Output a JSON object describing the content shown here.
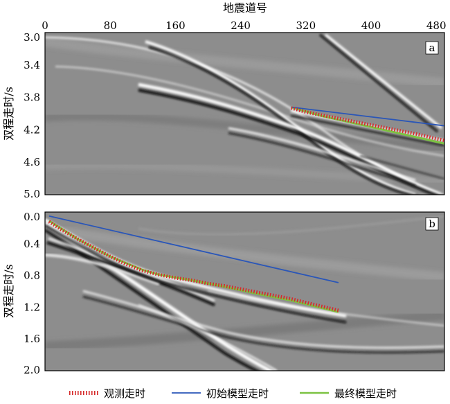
{
  "figure": {
    "x_axis_title": "地震道号",
    "y_axis_title": "双程走时/s"
  },
  "legend": {
    "items": [
      {
        "label": "观测走时",
        "color": "#d62b2b",
        "style": "dotted"
      },
      {
        "label": "初始模型走时",
        "color": "#2a56b8",
        "style": "solid"
      },
      {
        "label": "最终模型走时",
        "color": "#7cc242",
        "style": "solid"
      }
    ]
  },
  "colors": {
    "observed": "#d62b2b",
    "initial": "#2a56b8",
    "final": "#7cc242",
    "background": "#8c8c8c"
  },
  "chart_data": [
    {
      "type": "line",
      "panel_label": "a",
      "xlabel": "地震道号",
      "ylabel": "双程走时/s",
      "xlim": [
        0,
        490
      ],
      "ylim": [
        3.0,
        5.0
      ],
      "y_inverted": true,
      "xticks": [
        "0",
        "80",
        "160",
        "240",
        "320",
        "400",
        "480"
      ],
      "yticks": [
        "3.0",
        "3.4",
        "3.8",
        "4.2",
        "4.6",
        "5.0"
      ],
      "series": [
        {
          "name": "观测走时",
          "x": [
            302,
            320,
            340,
            360,
            380,
            400,
            420,
            440,
            460,
            480,
            490
          ],
          "y": [
            3.93,
            3.98,
            4.02,
            4.06,
            4.1,
            4.14,
            4.18,
            4.22,
            4.26,
            4.31,
            4.33
          ]
        },
        {
          "name": "初始模型走时",
          "x": [
            302,
            490
          ],
          "y": [
            3.92,
            4.15
          ]
        },
        {
          "name": "最终模型走时",
          "x": [
            302,
            340,
            380,
            420,
            460,
            490
          ],
          "y": [
            3.92,
            4.03,
            4.12,
            4.21,
            4.3,
            4.37
          ]
        }
      ]
    },
    {
      "type": "line",
      "panel_label": "b",
      "xlabel": "地震道号",
      "ylabel": "双程走时/s",
      "xlim": [
        0,
        490
      ],
      "ylim": [
        0.0,
        2.0
      ],
      "y_inverted": true,
      "xticks": [
        "0",
        "80",
        "160",
        "240",
        "320",
        "400",
        "480"
      ],
      "yticks": [
        "0.0",
        "0.4",
        "0.8",
        "1.2",
        "1.6",
        "2.0"
      ],
      "series": [
        {
          "name": "观测走时",
          "x": [
            5,
            20,
            40,
            60,
            80,
            100,
            120,
            140,
            160,
            180,
            200,
            220,
            240,
            260,
            280,
            300,
            320,
            340,
            360
          ],
          "y": [
            0.12,
            0.22,
            0.34,
            0.45,
            0.56,
            0.66,
            0.74,
            0.79,
            0.83,
            0.86,
            0.9,
            0.93,
            0.97,
            1.01,
            1.05,
            1.09,
            1.14,
            1.19,
            1.24
          ]
        },
        {
          "name": "初始模型走时",
          "x": [
            5,
            360
          ],
          "y": [
            0.05,
            0.89
          ]
        },
        {
          "name": "最终模型走时",
          "x": [
            5,
            40,
            80,
            120,
            140,
            180,
            220,
            260,
            300,
            340,
            360
          ],
          "y": [
            0.11,
            0.34,
            0.56,
            0.73,
            0.79,
            0.86,
            0.94,
            1.03,
            1.11,
            1.21,
            1.26
          ]
        }
      ]
    }
  ]
}
